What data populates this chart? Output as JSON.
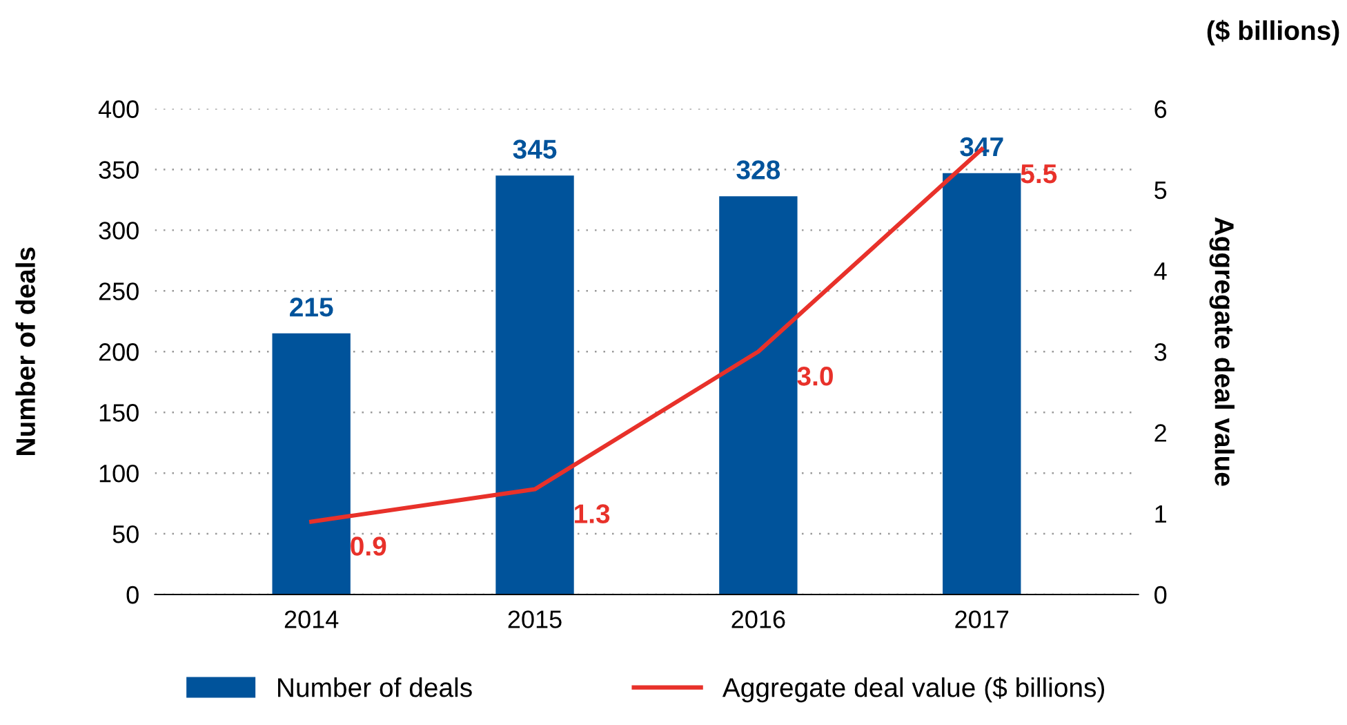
{
  "chart_data": {
    "type": "bar",
    "categories": [
      "2014",
      "2015",
      "2016",
      "2017"
    ],
    "series": [
      {
        "name": "Number of deals",
        "color": "#00539b",
        "values": [
          215,
          345,
          328,
          347
        ]
      },
      {
        "name": "Aggregate deal value ($ billions)",
        "type": "line",
        "axis": "y2",
        "color": "#e8312a",
        "values": [
          0.9,
          1.3,
          3.0,
          5.5
        ],
        "value_labels": [
          "0.9",
          "1.3",
          "3.0",
          "5.5"
        ]
      }
    ],
    "ylabel": "Number of deals",
    "y2label": "Aggregate deal value",
    "annotations": [
      "($ billions)"
    ],
    "ylim": [
      0,
      400
    ],
    "yticks": [
      0,
      50,
      100,
      150,
      200,
      250,
      300,
      350,
      400
    ],
    "y2lim": [
      0,
      6
    ],
    "y2ticks": [
      0,
      1,
      2,
      3,
      4,
      5,
      6
    ],
    "grid": "y",
    "legend": "bottom",
    "data_labels": true,
    "marker": "none",
    "line_style": "solid"
  }
}
